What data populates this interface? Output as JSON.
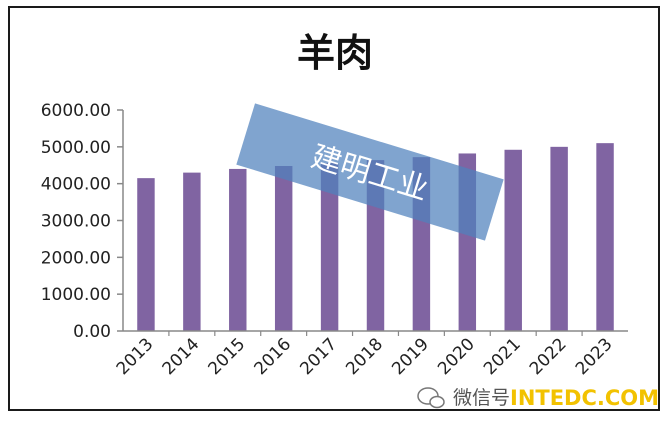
{
  "chart_data": {
    "type": "bar",
    "title": "羊肉",
    "categories": [
      "2013",
      "2014",
      "2015",
      "2016",
      "2017",
      "2018",
      "2019",
      "2020",
      "2021",
      "2022",
      "2023"
    ],
    "values": [
      4150,
      4300,
      4400,
      4480,
      4560,
      4640,
      4720,
      4820,
      4920,
      5000,
      5100
    ],
    "ylim": [
      0,
      6000
    ],
    "yticks": [
      "0.00",
      "1000.00",
      "2000.00",
      "3000.00",
      "4000.00",
      "5000.00",
      "6000.00"
    ],
    "bar_color": "#8064a2",
    "grid": false,
    "legend": "none"
  },
  "watermark": {
    "text": "建明工业",
    "color": "#4f81bd"
  },
  "footer": {
    "source_label": "微信号",
    "site": "INTEDC.COM"
  }
}
